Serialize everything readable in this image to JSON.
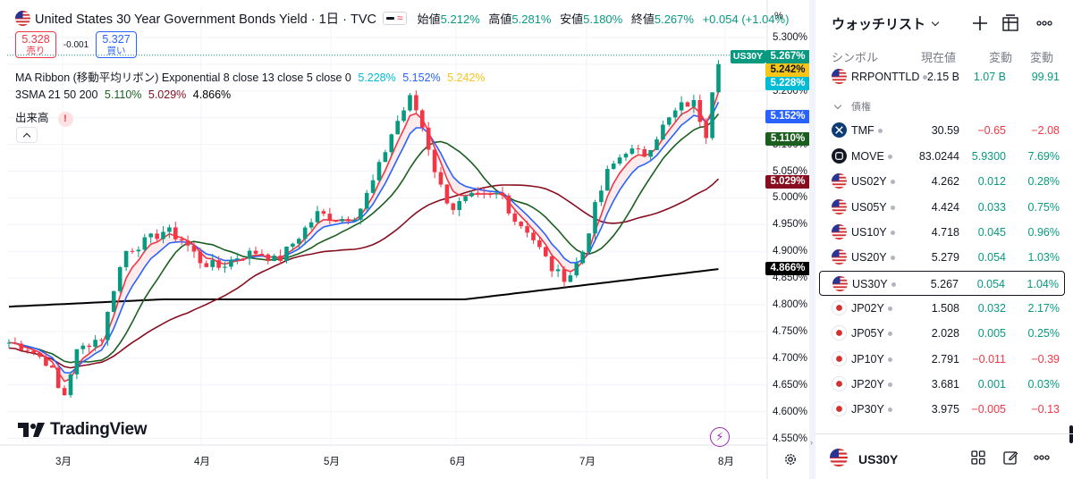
{
  "header": {
    "title": "United States 30 Year Government Bonds Yield · 1日 · TVC",
    "ohlc": [
      {
        "k": "始値",
        "v": "5.212%"
      },
      {
        "k": "高値",
        "v": "5.281%"
      },
      {
        "k": "安値",
        "v": "5.180%"
      },
      {
        "k": "終値",
        "v": "5.267%"
      }
    ],
    "change": "+0.054 (+1.04%)"
  },
  "trade": {
    "sell_price": "5.328",
    "sell_label": "売り",
    "spread": "-0.001",
    "buy_price": "5.327",
    "buy_label": "買い"
  },
  "indicators": {
    "ribbon_label": "MA Ribbon (移動平均リボン) Exponential 8 close 13 close 5 close 0",
    "ribbon_values": [
      "5.228%",
      "5.152%",
      "5.242%"
    ],
    "sma_label": "3SMA 21 50 200",
    "sma_values": [
      "5.110%",
      "5.029%",
      "4.866%"
    ],
    "volume_label": "出来高",
    "volume_badge": "!"
  },
  "logo": "TradingView",
  "axis": {
    "unit": "%",
    "price_ticks": [
      "5.300%",
      "5.250%",
      "5.200%",
      "5.150%",
      "5.100%",
      "5.050%",
      "5.000%",
      "4.950%",
      "4.900%",
      "4.850%",
      "4.800%",
      "4.750%",
      "4.700%",
      "4.650%",
      "4.600%",
      "4.550%"
    ],
    "time_ticks": [
      "3月",
      "4月",
      "5月",
      "6月",
      "7月",
      "8月"
    ]
  },
  "price_tags": {
    "symbol": "US30Y",
    "last": "5.267%",
    "ribbon1": "5.242%",
    "ribbon2": "5.228%",
    "ribbon3": "5.152%",
    "sma21": "5.110%",
    "sma50": "5.029%",
    "sma200": "4.866%"
  },
  "colors": {
    "up": "#089981",
    "down": "#f23645",
    "ribbon_blue": "#2962ff",
    "ribbon_red": "#f23645",
    "sma21": "#1b5e20",
    "sma50": "#880e1f",
    "sma200": "#000000",
    "yellow": "#f5c518",
    "cyan": "#00bcd4"
  },
  "watchlist": {
    "title": "ウォッチリスト",
    "columns": {
      "symbol": "シンボル",
      "last": "現在値",
      "chg": "変動",
      "chgp": "変動"
    },
    "section": "債権",
    "rows": [
      {
        "sym": "RRPONTTLD",
        "last": "2.15 B",
        "chg": "1.07 B",
        "chgp": "99.91",
        "dir": "pos",
        "icon": "us-flag-icon"
      },
      {
        "sym": "TMF",
        "last": "30.59",
        "chg": "−0.65",
        "chgp": "−2.08",
        "dir": "neg",
        "icon": "tmf-icon"
      },
      {
        "sym": "MOVE",
        "last": "83.0244",
        "chg": "5.9300",
        "chgp": "7.69%",
        "dir": "pos",
        "icon": "move-icon"
      },
      {
        "sym": "US02Y",
        "last": "4.262",
        "chg": "0.012",
        "chgp": "0.28%",
        "dir": "pos",
        "icon": "us-flag-icon"
      },
      {
        "sym": "US05Y",
        "last": "4.424",
        "chg": "0.033",
        "chgp": "0.75%",
        "dir": "pos",
        "icon": "us-flag-icon"
      },
      {
        "sym": "US10Y",
        "last": "4.718",
        "chg": "0.045",
        "chgp": "0.96%",
        "dir": "pos",
        "icon": "us-flag-icon"
      },
      {
        "sym": "US20Y",
        "last": "5.279",
        "chg": "0.054",
        "chgp": "1.03%",
        "dir": "pos",
        "icon": "us-flag-icon"
      },
      {
        "sym": "US30Y",
        "last": "5.267",
        "chg": "0.054",
        "chgp": "1.04%",
        "dir": "pos",
        "icon": "us-flag-icon"
      },
      {
        "sym": "JP02Y",
        "last": "1.508",
        "chg": "0.032",
        "chgp": "2.17%",
        "dir": "pos",
        "icon": "jp-flag-icon"
      },
      {
        "sym": "JP05Y",
        "last": "2.028",
        "chg": "0.005",
        "chgp": "0.25%",
        "dir": "pos",
        "icon": "jp-flag-icon"
      },
      {
        "sym": "JP10Y",
        "last": "2.791",
        "chg": "−0.011",
        "chgp": "−0.39",
        "dir": "neg",
        "icon": "jp-flag-icon"
      },
      {
        "sym": "JP20Y",
        "last": "3.681",
        "chg": "0.001",
        "chgp": "0.03%",
        "dir": "pos",
        "icon": "jp-flag-icon"
      },
      {
        "sym": "JP30Y",
        "last": "3.975",
        "chg": "−0.005",
        "chgp": "−0.13",
        "dir": "neg",
        "icon": "jp-flag-icon"
      }
    ],
    "footer_symbol": "US30Y"
  }
}
